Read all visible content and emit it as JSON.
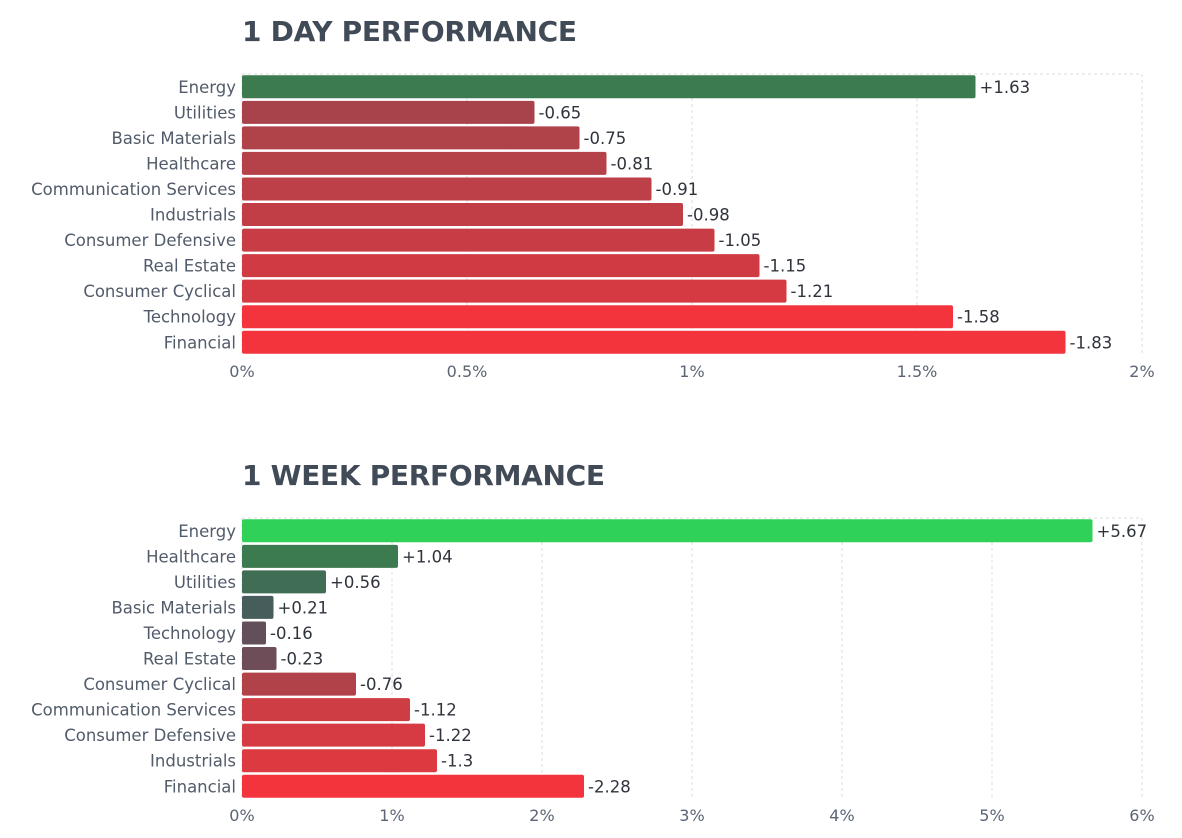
{
  "colors": {
    "positive_strong": "#30d158",
    "negative_strong": "#f4343c",
    "negative_weak": "#a0454d",
    "positive_weak": "#3c7a4f",
    "neutral": "#4a5360",
    "grid": "#d9dce1"
  },
  "chart_data": [
    {
      "type": "bar",
      "orientation": "horizontal",
      "title": "1 DAY PERFORMANCE",
      "categories": [
        "Energy",
        "Utilities",
        "Basic Materials",
        "Healthcare",
        "Communication Services",
        "Industrials",
        "Consumer Defensive",
        "Real Estate",
        "Consumer Cyclical",
        "Technology",
        "Financial"
      ],
      "values": [
        1.63,
        -0.65,
        -0.75,
        -0.81,
        -0.91,
        -0.98,
        -1.05,
        -1.15,
        -1.21,
        -1.58,
        -1.83
      ],
      "value_labels": [
        "+1.63",
        "-0.65",
        "-0.75",
        "-0.81",
        "-0.91",
        "-0.98",
        "-1.05",
        "-1.15",
        "-1.21",
        "-1.58",
        "-1.83"
      ],
      "xlim": [
        0,
        2
      ],
      "xticks": [
        "0%",
        "0.5%",
        "1%",
        "1.5%",
        "2%"
      ],
      "grid": true,
      "bar_length": "absolute value"
    },
    {
      "type": "bar",
      "orientation": "horizontal",
      "title": "1 WEEK PERFORMANCE",
      "categories": [
        "Energy",
        "Healthcare",
        "Utilities",
        "Basic Materials",
        "Technology",
        "Real Estate",
        "Consumer Cyclical",
        "Communication Services",
        "Consumer Defensive",
        "Industrials",
        "Financial"
      ],
      "values": [
        5.67,
        1.04,
        0.56,
        0.21,
        -0.16,
        -0.23,
        -0.76,
        -1.12,
        -1.22,
        -1.3,
        -2.28
      ],
      "value_labels": [
        "+5.67",
        "+1.04",
        "+0.56",
        "+0.21",
        "-0.16",
        "-0.23",
        "-0.76",
        "-1.12",
        "-1.22",
        "-1.3",
        "-2.28"
      ],
      "xlim": [
        0,
        6
      ],
      "xticks": [
        "0%",
        "1%",
        "2%",
        "3%",
        "4%",
        "5%",
        "6%"
      ],
      "grid": true,
      "bar_length": "absolute value"
    }
  ]
}
